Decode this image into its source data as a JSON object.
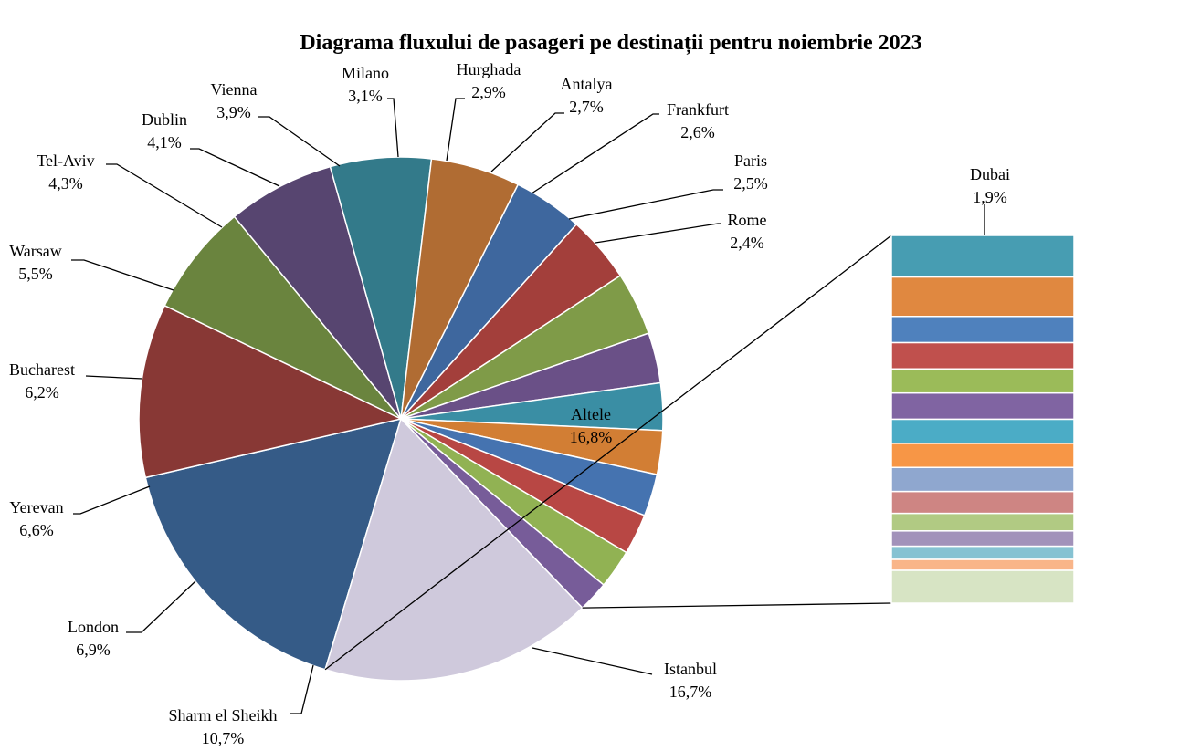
{
  "chart_data": {
    "type": "pie",
    "title": "Diagrama fluxului de pasageri pe destinații pentru noiembrie 2023",
    "slices": [
      {
        "label": "Istanbul",
        "value": 16.7,
        "display": "16,7%",
        "color": "#355B87"
      },
      {
        "label": "Sharm el Sheikh",
        "value": 10.7,
        "display": "10,7%",
        "color": "#883835"
      },
      {
        "label": "London",
        "value": 6.9,
        "display": "6,9%",
        "color": "#6A843E"
      },
      {
        "label": "Yerevan",
        "value": 6.6,
        "display": "6,6%",
        "color": "#574570"
      },
      {
        "label": "Bucharest",
        "value": 6.2,
        "display": "6,2%",
        "color": "#337A8A"
      },
      {
        "label": "Warsaw",
        "value": 5.5,
        "display": "5,5%",
        "color": "#B06C33"
      },
      {
        "label": "Tel-Aviv",
        "value": 4.3,
        "display": "4,3%",
        "color": "#3E679E"
      },
      {
        "label": "Dublin",
        "value": 4.1,
        "display": "4,1%",
        "color": "#A33F3B"
      },
      {
        "label": "Vienna",
        "value": 3.9,
        "display": "3,9%",
        "color": "#7F9B48"
      },
      {
        "label": "Milano",
        "value": 3.1,
        "display": "3,1%",
        "color": "#6A5087"
      },
      {
        "label": "Hurghada",
        "value": 2.9,
        "display": "2,9%",
        "color": "#3A8EA4"
      },
      {
        "label": "Antalya",
        "value": 2.7,
        "display": "2,7%",
        "color": "#D27E34"
      },
      {
        "label": "Frankfurt",
        "value": 2.6,
        "display": "2,6%",
        "color": "#4573B0"
      },
      {
        "label": "Paris",
        "value": 2.5,
        "display": "2,5%",
        "color": "#B84744"
      },
      {
        "label": "Rome",
        "value": 2.4,
        "display": "2,4%",
        "color": "#91B253"
      },
      {
        "label": "Dubai",
        "value": 1.9,
        "display": "1,9%",
        "color": "#775C99"
      },
      {
        "label": "Altele",
        "value": 16.8,
        "display": "16,8%",
        "color": "#CFC9DC"
      }
    ],
    "other_breakdown": {
      "total": 16.8,
      "segments": [
        {
          "value": 1.9,
          "color": "#479DB2"
        },
        {
          "value": 1.8,
          "color": "#E08840"
        },
        {
          "value": 1.2,
          "color": "#4F81BD"
        },
        {
          "value": 1.2,
          "color": "#C0504D"
        },
        {
          "value": 1.1,
          "color": "#9BBB59"
        },
        {
          "value": 1.2,
          "color": "#8064A2"
        },
        {
          "value": 1.1,
          "color": "#4BACC6"
        },
        {
          "value": 1.1,
          "color": "#F79646"
        },
        {
          "value": 1.1,
          "color": "#8FA7CF"
        },
        {
          "value": 1.0,
          "color": "#CE8583"
        },
        {
          "value": 0.8,
          "color": "#B1CA83"
        },
        {
          "value": 0.7,
          "color": "#A292BA"
        },
        {
          "value": 0.6,
          "color": "#86C2D2"
        },
        {
          "value": 0.5,
          "color": "#F9B589"
        },
        {
          "value": 1.5,
          "color": "#D7E4C4"
        }
      ]
    }
  }
}
